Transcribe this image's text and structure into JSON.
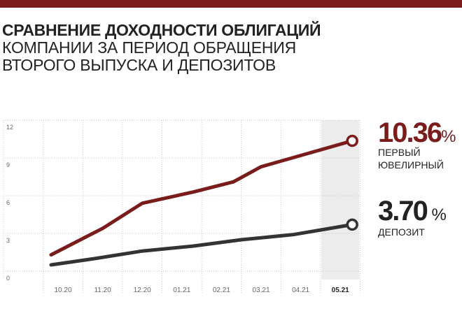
{
  "colors": {
    "accent": "#7a1c1c",
    "dark": "#333333",
    "grid": "#bbbbbb",
    "highlight_band": "#ececec",
    "axis_text": "#666666"
  },
  "title": {
    "line1": "СРАВНЕНИЕ ДОХОДНОСТИ ОБЛИГАЦИЙ",
    "line2": "КОМПАНИИ ЗА ПЕРИОД ОБРАЩЕНИЯ",
    "line3": "ВТОРОГО ВЫПУСКА И ДЕПОЗИТОВ"
  },
  "chart_data": {
    "type": "line",
    "title": "СРАВНЕНИЕ ДОХОДНОСТИ ОБЛИГАЦИЙ КОМПАНИИ ЗА ПЕРИОД ОБРАЩЕНИЯ ВТОРОГО ВЫПУСКА И ДЕПОЗИТОВ",
    "x": [
      "10.20",
      "11.20",
      "12.20",
      "01.21",
      "02.21",
      "03.21",
      "04.21",
      "05.21"
    ],
    "x_highlight": "05.21",
    "ylim": [
      0,
      12
    ],
    "yticks": [
      0,
      3,
      6,
      9,
      12
    ],
    "grid": true,
    "series": [
      {
        "name": "ПЕРВЫЙ ЮВЕЛИРНЫЙ",
        "color": "#7a1c1c",
        "points": [
          [
            -0.3,
            1.3
          ],
          [
            1.0,
            3.4
          ],
          [
            2.0,
            5.4
          ],
          [
            3.3,
            6.3
          ],
          [
            4.3,
            7.1
          ],
          [
            5.0,
            8.3
          ],
          [
            7.3,
            10.36
          ]
        ],
        "final_value": "10.36",
        "final_unit": "%"
      },
      {
        "name": "ДЕПОЗИТ",
        "color": "#333333",
        "points": [
          [
            -0.3,
            0.5
          ],
          [
            0.8,
            1.0
          ],
          [
            2.0,
            1.6
          ],
          [
            3.3,
            2.0
          ],
          [
            4.5,
            2.5
          ],
          [
            5.8,
            2.9
          ],
          [
            7.3,
            3.7
          ]
        ],
        "final_value": "3.70",
        "final_unit": " %"
      }
    ]
  },
  "labels": {
    "red_value": "10.36",
    "red_unit": "%",
    "red_line1": "ПЕРВЫЙ",
    "red_line2": "ЮВЕЛИРНЫЙ",
    "dark_value": "3.70",
    "dark_unit": " %",
    "dark_line1": "ДЕПОЗИТ"
  }
}
